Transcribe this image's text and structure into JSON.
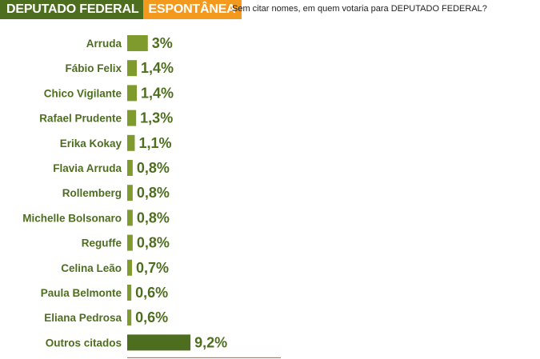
{
  "header": {
    "title": "DEPUTADO FEDERAL",
    "tag": "ESPONTÂNEA",
    "question": "Sem citar nomes, em quem votaria para DEPUTADO FEDERAL?"
  },
  "colors": {
    "bar": "#7f9b2e",
    "bar_highlight": "#4e6e1f",
    "header_green": "#4e6e1f",
    "header_orange": "#f39a1e",
    "baseline": "#d2562b"
  },
  "chart_data": {
    "type": "bar",
    "orientation": "horizontal",
    "categories": [
      "Arruda",
      "Fábio Felix",
      "Chico Vigilante",
      "Rafael Prudente",
      "Erika Kokay",
      "Flavia Arruda",
      "Rollemberg",
      "Michelle Bolsonaro",
      "Reguffe",
      "Celina Leão",
      "Paula Belmonte",
      "Eliana Pedrosa",
      "Outros citados"
    ],
    "values": [
      3,
      1.4,
      1.4,
      1.3,
      1.1,
      0.8,
      0.8,
      0.8,
      0.8,
      0.7,
      0.6,
      0.6,
      9.2
    ],
    "value_labels": [
      "3%",
      "1,4%",
      "1,4%",
      "1,3%",
      "1,1%",
      "0,8%",
      "0,8%",
      "0,8%",
      "0,8%",
      "0,7%",
      "0,6%",
      "0,6%",
      "9,2%"
    ],
    "title": "",
    "xlabel": "",
    "ylabel": "",
    "grid": false
  }
}
